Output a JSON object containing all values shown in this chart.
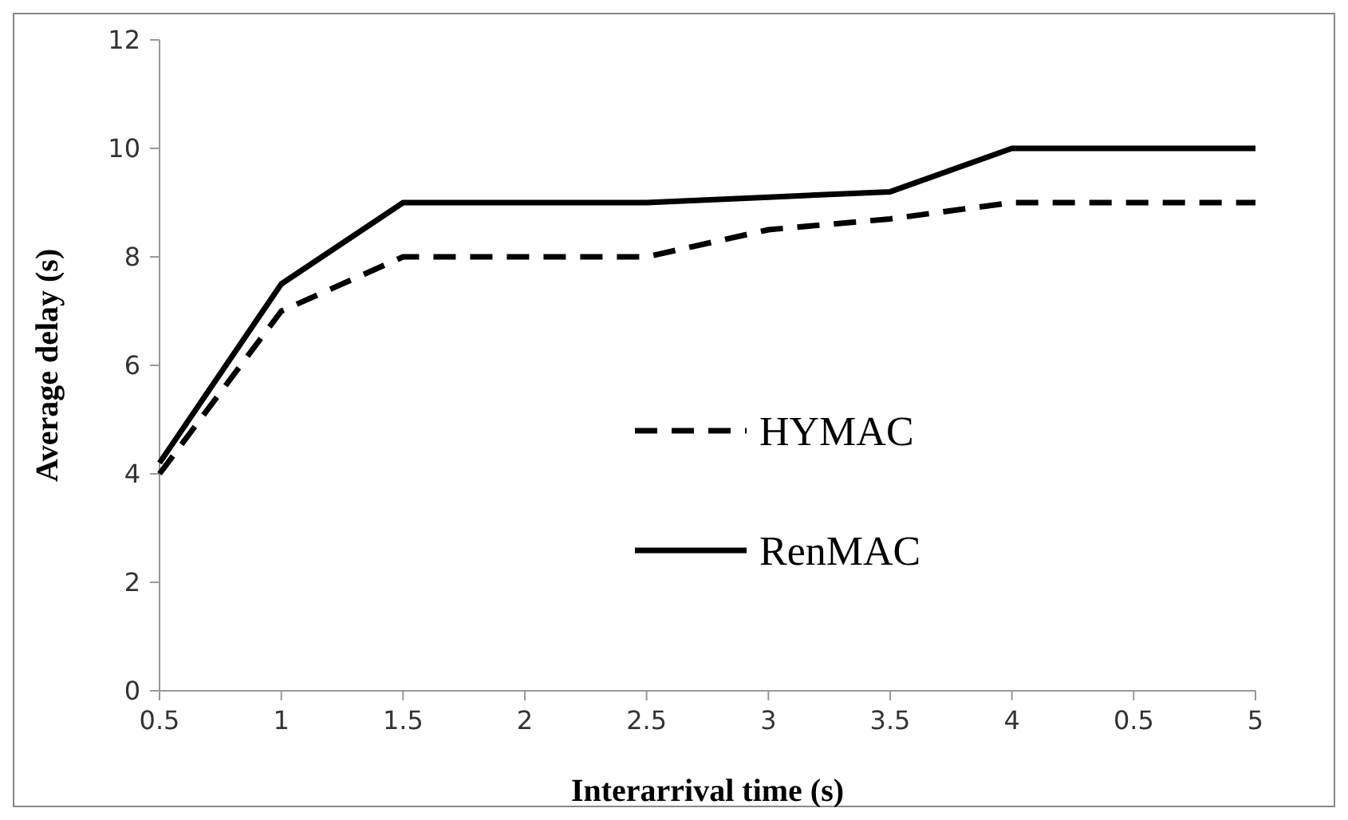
{
  "chart_data": {
    "type": "line",
    "xlabel": "Interarrival time (s)",
    "ylabel": "Average delay (s)",
    "categories": [
      "0.5",
      "1",
      "1.5",
      "2",
      "2.5",
      "3",
      "3.5",
      "4",
      "0.5",
      "5"
    ],
    "series": [
      {
        "name": "HYMAC",
        "color": "#000000",
        "line_style": "dashed",
        "values": [
          4,
          7,
          8,
          8,
          8,
          8.5,
          8.7,
          9,
          9,
          9
        ]
      },
      {
        "name": "RenMAC",
        "color": "#000000",
        "line_style": "solid",
        "values": [
          4.2,
          7.5,
          9,
          9,
          9,
          9.1,
          9.2,
          10,
          10,
          10
        ]
      }
    ],
    "ylim": [
      0,
      12
    ],
    "yticks": [
      0,
      2,
      4,
      6,
      8,
      10,
      12
    ],
    "grid": false,
    "legend": "center",
    "marker": "none"
  }
}
